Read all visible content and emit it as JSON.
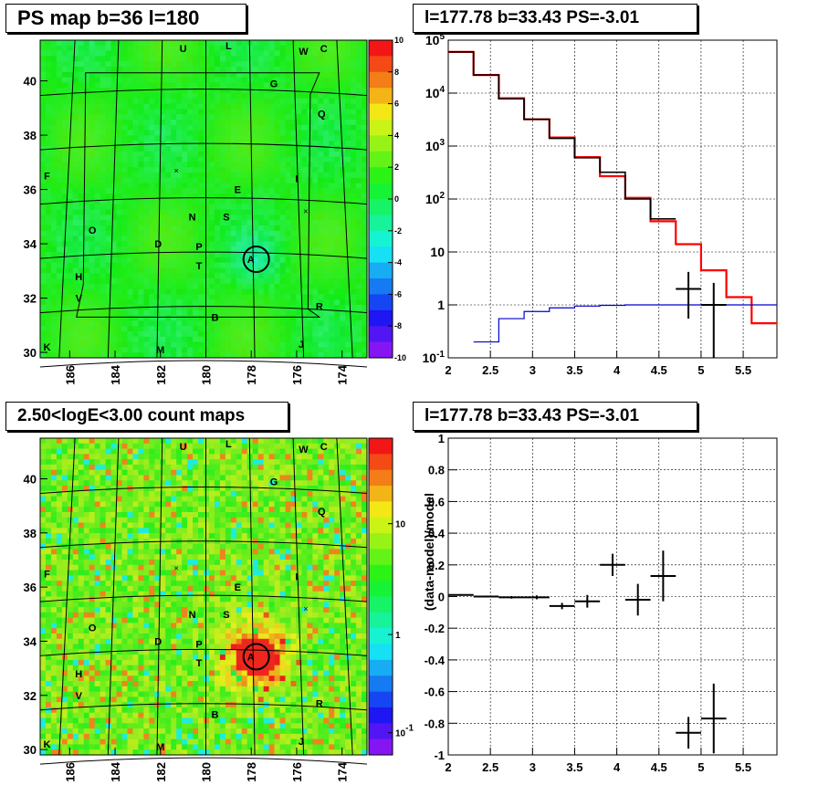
{
  "titles": {
    "map_tl": "PS map b=36 l=180",
    "spec_tr": "l=177.78 b=33.43 PS=-3.01",
    "map_bl": "2.50<logE<3.00 count maps",
    "resid_br": "l=177.78 b=33.43 PS=-3.01"
  },
  "chart_data": [
    {
      "type": "heatmap",
      "id": "ps-map",
      "title": "PS map b=36 l=180",
      "xlim": [
        187.3,
        172.9
      ],
      "ylim": [
        29.8,
        41.5
      ],
      "x_ticks": [
        186,
        184,
        182,
        180,
        178,
        176,
        174
      ],
      "y_ticks": [
        30,
        32,
        34,
        36,
        38,
        40
      ],
      "colorbar": {
        "min": -10,
        "max": 10,
        "ticks": [
          10,
          8,
          6,
          4,
          2,
          0,
          -2,
          -4,
          -6,
          -8,
          -10
        ]
      },
      "source_circle": {
        "l": 177.78,
        "b": 33.43,
        "label": "A"
      },
      "labels": [
        {
          "t": "U",
          "l": 181.0,
          "b": 41.2
        },
        {
          "t": "L",
          "l": 179.0,
          "b": 41.3
        },
        {
          "t": "W",
          "l": 175.7,
          "b": 41.1
        },
        {
          "t": "C",
          "l": 174.8,
          "b": 41.2
        },
        {
          "t": "G",
          "l": 177.0,
          "b": 39.9
        },
        {
          "t": "Q",
          "l": 174.9,
          "b": 38.8
        },
        {
          "t": "F",
          "l": 187.0,
          "b": 36.5
        },
        {
          "t": "I",
          "l": 176.0,
          "b": 36.4
        },
        {
          "t": "E",
          "l": 178.6,
          "b": 36.0
        },
        {
          "t": "N",
          "l": 180.6,
          "b": 35.0
        },
        {
          "t": "S",
          "l": 179.1,
          "b": 35.0
        },
        {
          "t": "O",
          "l": 185.0,
          "b": 34.5
        },
        {
          "t": "D",
          "l": 182.1,
          "b": 34.0
        },
        {
          "t": "P",
          "l": 180.3,
          "b": 33.9
        },
        {
          "t": "T",
          "l": 180.3,
          "b": 33.2
        },
        {
          "t": "H",
          "l": 185.6,
          "b": 32.8
        },
        {
          "t": "V",
          "l": 185.6,
          "b": 32.0
        },
        {
          "t": "R",
          "l": 175.0,
          "b": 31.7
        },
        {
          "t": "B",
          "l": 179.6,
          "b": 31.3
        },
        {
          "t": "K",
          "l": 187.0,
          "b": 30.2
        },
        {
          "t": "M",
          "l": 182.0,
          "b": 30.1
        },
        {
          "t": "J",
          "l": 175.8,
          "b": 30.3
        }
      ],
      "crosses": [
        {
          "l": 181.3,
          "b": 36.7
        },
        {
          "l": 175.6,
          "b": 35.2
        }
      ]
    },
    {
      "type": "line",
      "id": "spectrum",
      "title": "l=177.78 b=33.43 PS=-3.01",
      "xlim": [
        2.0,
        5.9
      ],
      "ylim_log10": [
        -1,
        5
      ],
      "log_y": true,
      "x_ticks": [
        2,
        2.5,
        3,
        3.5,
        4,
        4.5,
        5,
        5.5
      ],
      "y_tick_labels": [
        "10^-1",
        "1",
        "10",
        "10^2",
        "10^3",
        "10^4",
        "10^5"
      ],
      "grid": true,
      "series": [
        {
          "style": "step",
          "color": "#ff0000",
          "edges": [
            2.0,
            2.3,
            2.6,
            2.9,
            3.2,
            3.5,
            3.8,
            4.1,
            4.4,
            4.7,
            5.0,
            5.3,
            5.6,
            5.9
          ],
          "values": [
            60000,
            22000,
            8000,
            3200,
            1450,
            620,
            270,
            105,
            38,
            14,
            4.5,
            1.4,
            0.45
          ]
        },
        {
          "style": "step",
          "color": "#000000",
          "edges": [
            2.0,
            2.3,
            2.6,
            2.9,
            3.2,
            3.5,
            3.8,
            4.1,
            4.4,
            4.7,
            5.0,
            5.3,
            5.6,
            5.9
          ],
          "values": [
            60000,
            22000,
            7800,
            3200,
            1400,
            600,
            320,
            100,
            42,
            null,
            null,
            null,
            null
          ]
        },
        {
          "style": "step",
          "color": "#0000cc",
          "edges": [
            2.0,
            2.3,
            2.6,
            2.9,
            3.2,
            3.5,
            3.8,
            4.1,
            4.4,
            4.7,
            5.0,
            5.3,
            5.6,
            5.9
          ],
          "values": [
            null,
            0.2,
            0.55,
            0.75,
            0.88,
            0.95,
            0.98,
            1.0,
            1.0,
            1.0,
            1.0,
            1.0,
            1.0
          ]
        },
        {
          "style": "errorbar",
          "color": "#000000",
          "points": [
            {
              "x": 4.85,
              "y": 2.0,
              "xerr": 0.15,
              "ylo": 0.55,
              "yhi": 4.2
            },
            {
              "x": 5.15,
              "y": 1.0,
              "xerr": 0.15,
              "ylo": 0.1,
              "yhi": 2.6
            }
          ]
        }
      ]
    },
    {
      "type": "heatmap",
      "id": "count-map",
      "title": "2.50<logE<3.00 count maps",
      "xlim": [
        187.3,
        172.9
      ],
      "ylim": [
        29.8,
        41.5
      ],
      "x_ticks": [
        186,
        184,
        182,
        180,
        178,
        176,
        174
      ],
      "y_ticks": [
        30,
        32,
        34,
        36,
        38,
        40
      ],
      "colorbar": {
        "log": true,
        "ticks": [
          "10",
          "1",
          "10^-1"
        ]
      },
      "source_circle": {
        "l": 177.78,
        "b": 33.43,
        "label": "A"
      }
    },
    {
      "type": "scatter",
      "id": "residuals",
      "title": "l=177.78 b=33.43 PS=-3.01",
      "ylabel": "(data-model)/model",
      "xlim": [
        2.0,
        5.9
      ],
      "ylim": [
        -1,
        1
      ],
      "x_ticks": [
        2,
        2.5,
        3,
        3.5,
        4,
        4.5,
        5,
        5.5
      ],
      "y_ticks": [
        1,
        0.8,
        0.6,
        0.4,
        0.2,
        0,
        -0.2,
        -0.4,
        -0.6,
        -0.8,
        -1
      ],
      "grid": true,
      "points": [
        {
          "x": 2.15,
          "y": 0.01,
          "xerr": 0.15,
          "yerr": 0.005
        },
        {
          "x": 2.45,
          "y": 0.0,
          "xerr": 0.15,
          "yerr": 0.006
        },
        {
          "x": 2.75,
          "y": -0.005,
          "xerr": 0.15,
          "yerr": 0.008
        },
        {
          "x": 3.05,
          "y": -0.005,
          "xerr": 0.15,
          "yerr": 0.012
        },
        {
          "x": 3.35,
          "y": -0.06,
          "xerr": 0.15,
          "yerr": 0.02
        },
        {
          "x": 3.65,
          "y": -0.03,
          "xerr": 0.15,
          "yerr": 0.04
        },
        {
          "x": 3.95,
          "y": 0.2,
          "xerr": 0.15,
          "yerr": 0.07
        },
        {
          "x": 4.25,
          "y": -0.02,
          "xerr": 0.15,
          "yerr": 0.1
        },
        {
          "x": 4.55,
          "y": 0.13,
          "xerr": 0.15,
          "yerr": 0.16
        },
        {
          "x": 4.85,
          "y": -0.86,
          "xerr": 0.15,
          "yerr": 0.1
        },
        {
          "x": 5.15,
          "y": -0.77,
          "xerr": 0.15,
          "yerr": 0.22
        }
      ]
    }
  ]
}
